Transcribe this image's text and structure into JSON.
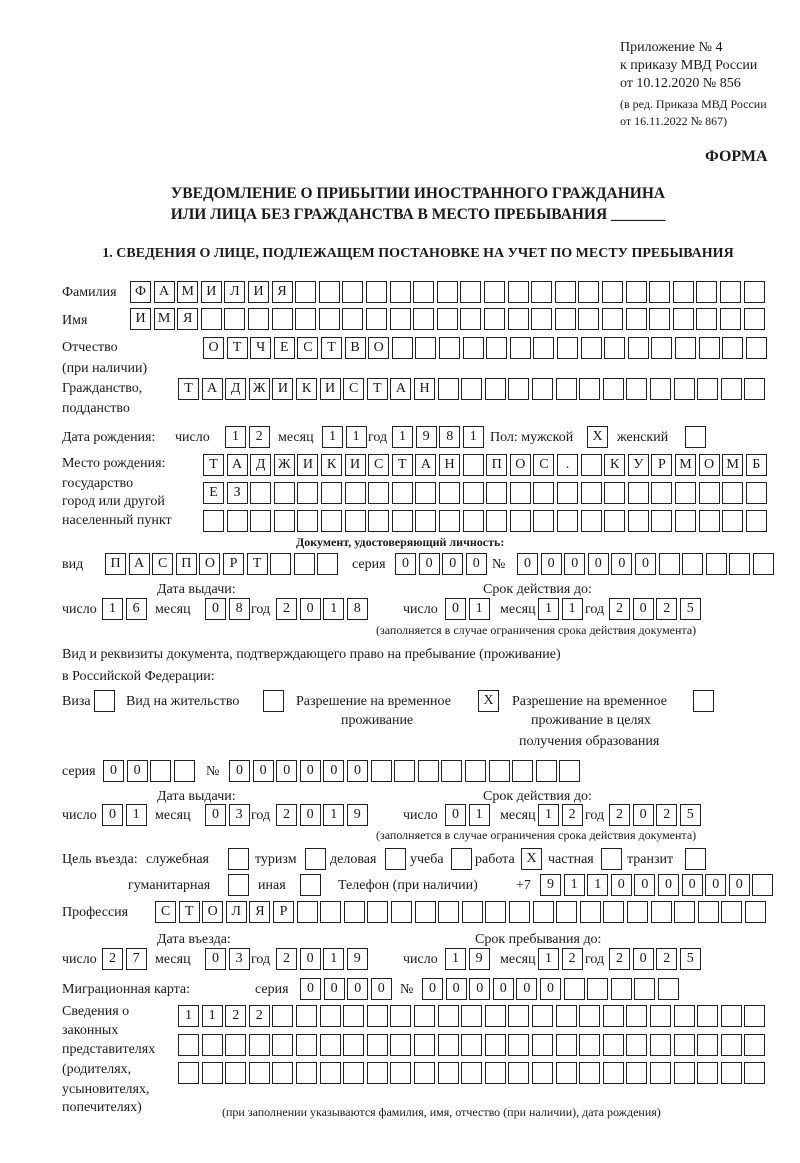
{
  "header": {
    "appendix_lines": [
      "Приложение № 4",
      "к приказу МВД России",
      "от 10.12.2020 № 856"
    ],
    "amendment_lines": [
      "(в ред. Приказа МВД России",
      "от 16.11.2022 № 867)"
    ],
    "form_label": "ФОРМА",
    "title_line1": "УВЕДОМЛЕНИЕ О ПРИБЫТИИ ИНОСТРАННОГО ГРАЖДАНИНА",
    "title_line2": "ИЛИ ЛИЦА БЕЗ ГРАЖДАНСТВА В МЕСТО ПРЕБЫВАНИЯ _______",
    "section1": "1. СВЕДЕНИЯ О ЛИЦЕ, ПОДЛЕЖАЩЕМ ПОСТАНОВКЕ НА УЧЕТ ПО МЕСТУ ПРЕБЫВАНИЯ"
  },
  "labels": {
    "day": "число",
    "month": "месяц",
    "year": "год",
    "series": "серия",
    "number": "№"
  },
  "person": {
    "surname_label": "Фамилия",
    "surname": "ФАМИЛИЯ",
    "name_label": "Имя",
    "name": "ИМЯ",
    "patronymic_label": "Отчество",
    "patronymic_note": "(при наличии)",
    "patronymic": "ОТЧЕСТВО",
    "citizenship_label1": "Гражданство,",
    "citizenship_label2": "подданство",
    "citizenship": "ТАДЖИКИСТАН"
  },
  "birth": {
    "label": "Дата рождения:",
    "day": "12",
    "month": "11",
    "year": "1981",
    "sex_label": "Пол: мужской",
    "male": "X",
    "female_label": "женский",
    "female": ""
  },
  "birthplace": {
    "label_lines": [
      "Место рождения:",
      "государство",
      "город или другой",
      "населенный пункт"
    ],
    "lines": [
      "ТАДЖИКИСТАН ПОС. КУРМОМБ",
      "ЕЗ",
      ""
    ]
  },
  "id_doc": {
    "heading": "Документ, удостоверяющий личность:",
    "type_label": "вид",
    "type": "ПАСПОРТ",
    "series": "0000",
    "number": "000000",
    "issue_label": "Дата выдачи:",
    "valid_label": "Срок действия до:",
    "issue": {
      "day": "16",
      "month": "08",
      "year": "2018"
    },
    "valid": {
      "day": "01",
      "month": "11",
      "year": "2025"
    },
    "note": "(заполняется в случае ограничения срока действия документа)"
  },
  "stay_doc": {
    "heading_line1": "Вид и реквизиты документа, подтверждающего право на пребывание (проживание)",
    "heading_line2": "в Российской Федерации:",
    "visa": {
      "label": "Виза",
      "mark": ""
    },
    "residence": {
      "label": "Вид на жительство",
      "mark": ""
    },
    "temp_permit": {
      "label_lines": [
        "Разрешение на временное",
        "проживание"
      ],
      "mark": "X"
    },
    "edu_permit": {
      "label_lines": [
        "Разрешение на временное",
        "проживание в целях",
        "получения образования"
      ],
      "mark": ""
    },
    "series": "00",
    "number": "000000",
    "issue_label": "Дата выдачи:",
    "valid_label": "Срок действия до:",
    "issue": {
      "day": "01",
      "month": "03",
      "year": "2019"
    },
    "valid": {
      "day": "01",
      "month": "12",
      "year": "2025"
    },
    "note": "(заполняется в случае ограничения срока действия документа)"
  },
  "purpose": {
    "label": "Цель въезда:",
    "options": [
      {
        "label": "служебная",
        "mark": ""
      },
      {
        "label": "туризм",
        "mark": ""
      },
      {
        "label": "деловая",
        "mark": ""
      },
      {
        "label": "учеба",
        "mark": ""
      },
      {
        "label": "работа",
        "mark": "X"
      },
      {
        "label": "частная",
        "mark": ""
      },
      {
        "label": "транзит",
        "mark": ""
      },
      {
        "label": "гуманитарная",
        "mark": ""
      },
      {
        "label": "иная",
        "mark": ""
      }
    ],
    "phone_label": "Телефон (при наличии)",
    "phone_prefix": "+7",
    "phone": "911000000"
  },
  "profession": {
    "label": "Профессия",
    "value": "СТОЛЯР"
  },
  "entry": {
    "entry_label": "Дата въезда:",
    "until_label": "Срок пребывания до:",
    "entry": {
      "day": "27",
      "month": "03",
      "year": "2019"
    },
    "until": {
      "day": "19",
      "month": "12",
      "year": "2025"
    }
  },
  "migration_card": {
    "label": "Миграционная карта:",
    "series": "0000",
    "number": "000000"
  },
  "representatives": {
    "label_lines": [
      "Сведения о",
      "законных",
      "представителях",
      "(родителях,",
      "усыновителях,",
      "попечителях)"
    ],
    "lines": [
      "1122",
      "",
      ""
    ],
    "note": "(при заполнении указываются фамилия, имя, отчество (при наличии), дата рождения)"
  }
}
